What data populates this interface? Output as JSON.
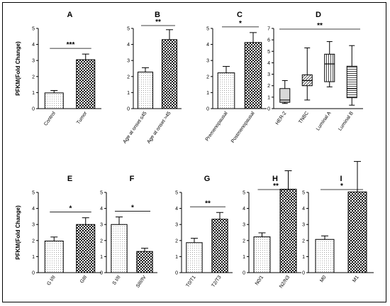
{
  "y_axis_label": "PFKM(Fold Change)",
  "chart_data": [
    {
      "panel": "A",
      "type": "bar",
      "row": 0,
      "categories": [
        "Control",
        "Tumor"
      ],
      "values": [
        0.98,
        3.05
      ],
      "errors": [
        0.15,
        0.35
      ],
      "patterns": [
        "dots",
        "checker"
      ],
      "ylim": [
        0,
        5
      ],
      "yticks": [
        "0",
        "1",
        "2",
        "3",
        "4",
        "5"
      ],
      "ylabel": "PFKM(Fold Change)",
      "significance": "***"
    },
    {
      "panel": "B",
      "type": "bar",
      "row": 0,
      "categories": [
        "Age at onset ≤45",
        "Age at onset >45"
      ],
      "values": [
        2.28,
        4.3
      ],
      "errors": [
        0.27,
        0.62
      ],
      "patterns": [
        "dots",
        "checker"
      ],
      "ylim": [
        0,
        5
      ],
      "yticks": [
        "0",
        "1",
        "2",
        "3",
        "4",
        "5"
      ],
      "significance": "**"
    },
    {
      "panel": "C",
      "type": "bar",
      "row": 0,
      "categories": [
        "Premenopausal",
        "Postmenopausal"
      ],
      "values": [
        2.23,
        4.12
      ],
      "errors": [
        0.4,
        0.62
      ],
      "patterns": [
        "dots",
        "checker"
      ],
      "ylim": [
        0,
        5
      ],
      "yticks": [
        "0",
        "1",
        "2",
        "3",
        "4",
        "5"
      ],
      "significance": "*"
    },
    {
      "panel": "D",
      "type": "box",
      "row": 0,
      "categories": [
        "HER-2",
        "TNBC",
        "Luminal A",
        "Luminal B"
      ],
      "boxes": [
        {
          "min": 0.45,
          "q1": 0.55,
          "median": 0.75,
          "q3": 1.75,
          "max": 2.45
        },
        {
          "min": 0.75,
          "q1": 2.0,
          "median": 2.45,
          "q3": 2.95,
          "max": 5.3
        },
        {
          "min": 1.9,
          "q1": 2.35,
          "median": 3.9,
          "q3": 4.75,
          "max": 5.85
        },
        {
          "min": 0.3,
          "q1": 0.95,
          "median": 1.75,
          "q3": 3.7,
          "max": 5.5
        }
      ],
      "patterns": [
        "dense-dots",
        "hatch",
        "vstripe",
        "hstripe"
      ],
      "ylim": [
        0,
        7
      ],
      "yticks": [
        "0",
        "1",
        "2",
        "3",
        "4",
        "5",
        "6",
        "7"
      ],
      "significance": "**"
    },
    {
      "panel": "E",
      "type": "bar",
      "row": 1,
      "categories": [
        "G I/II",
        "GIII"
      ],
      "values": [
        1.97,
        3.0
      ],
      "errors": [
        0.25,
        0.42
      ],
      "patterns": [
        "dots",
        "checker"
      ],
      "ylim": [
        0,
        5
      ],
      "yticks": [
        "0",
        "1",
        "2",
        "3",
        "4",
        "5"
      ],
      "ylabel": "PFKM(Fold Change)",
      "significance": "*"
    },
    {
      "panel": "F",
      "type": "bar",
      "row": 1,
      "categories": [
        "S I/II",
        "SIII/IV"
      ],
      "values": [
        3.0,
        1.32
      ],
      "errors": [
        0.47,
        0.2
      ],
      "patterns": [
        "dots",
        "checker"
      ],
      "ylim": [
        0,
        5
      ],
      "yticks": [
        "0",
        "1",
        "2",
        "3",
        "4",
        "5"
      ],
      "significance": "*"
    },
    {
      "panel": "G",
      "type": "bar",
      "row": 1,
      "categories": [
        "T0/T1",
        "T2/T3"
      ],
      "values": [
        1.87,
        3.33
      ],
      "errors": [
        0.27,
        0.42
      ],
      "patterns": [
        "dots",
        "checker"
      ],
      "ylim": [
        0,
        5
      ],
      "yticks": [
        "0",
        "1",
        "2",
        "3",
        "4",
        "5"
      ],
      "significance": "**"
    },
    {
      "panel": "H",
      "type": "bar",
      "row": 1,
      "categories": [
        "N0/1",
        "N2/N3"
      ],
      "values": [
        2.23,
        5.2
      ],
      "errors": [
        0.25,
        1.15
      ],
      "patterns": [
        "dots",
        "checker"
      ],
      "ylim": [
        0,
        5
      ],
      "yticks": [
        "0",
        "1",
        "2",
        "3",
        "4",
        "5"
      ],
      "significance": "**"
    },
    {
      "panel": "I",
      "type": "bar",
      "row": 1,
      "categories": [
        "M0",
        "M1"
      ],
      "values": [
        2.07,
        5.03
      ],
      "errors": [
        0.22,
        1.9
      ],
      "patterns": [
        "dots",
        "checker"
      ],
      "ylim": [
        0,
        5
      ],
      "yticks": [
        "0",
        "1",
        "2",
        "3",
        "4",
        "5"
      ],
      "significance": "*"
    }
  ]
}
